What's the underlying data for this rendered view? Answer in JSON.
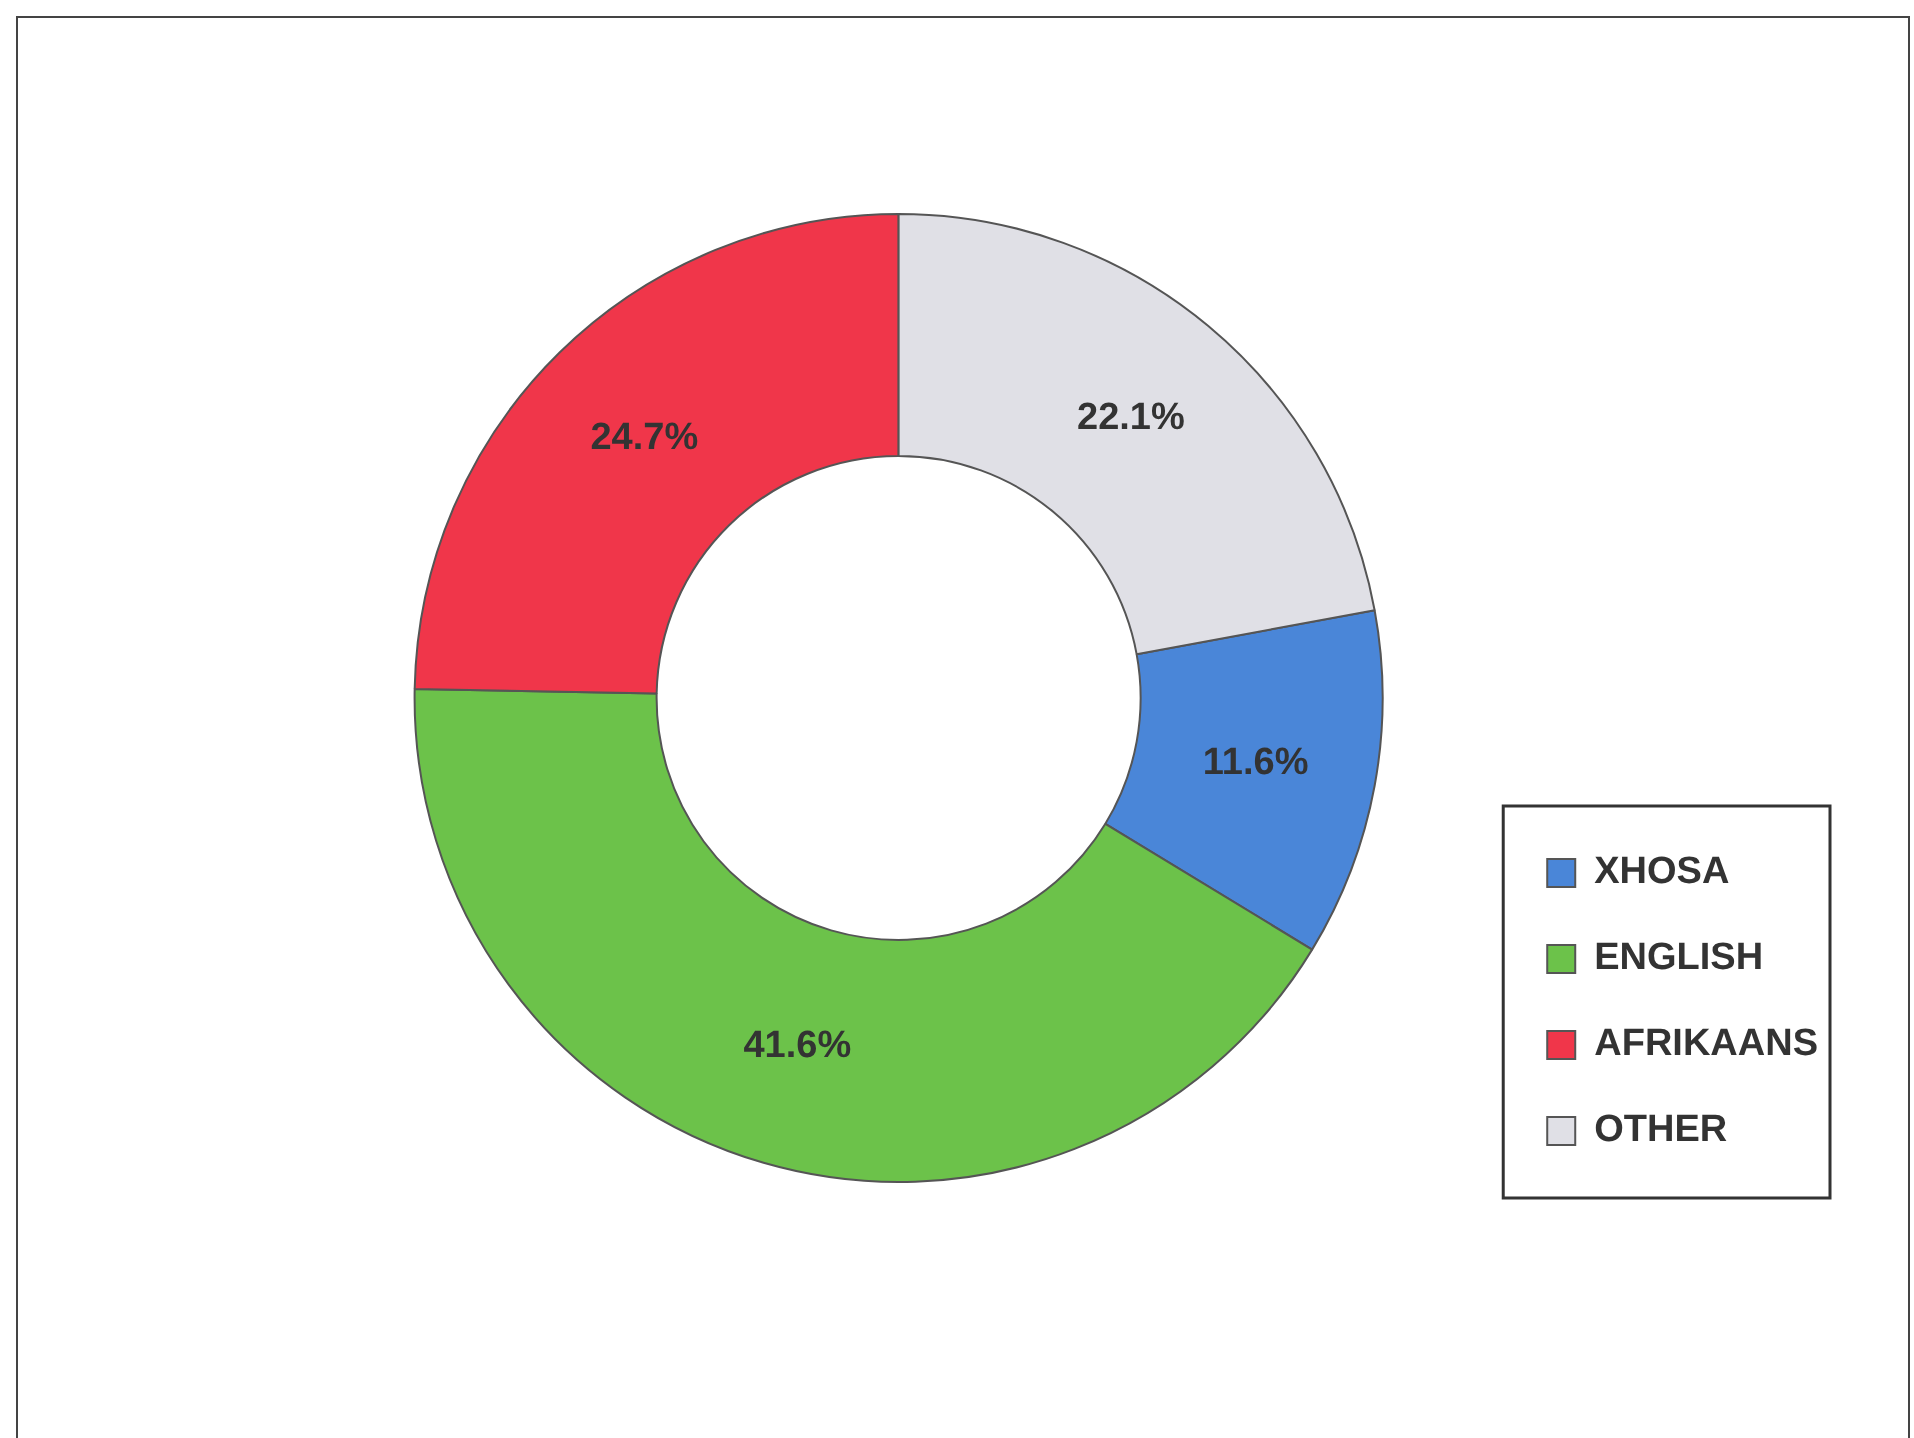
{
  "chart_data": {
    "type": "donut",
    "categories": [
      "XHOSA",
      "ENGLISH",
      "AFRIKAANS",
      "OTHER"
    ],
    "values": [
      11.6,
      41.6,
      24.7,
      22.1
    ],
    "colors": [
      "#4a86d8",
      "#6cc24a",
      "#f0364a",
      "#e0e0e6"
    ],
    "value_labels": [
      "11.6%",
      "41.6%",
      "24.7%",
      "22.1%"
    ],
    "legend": "right"
  }
}
